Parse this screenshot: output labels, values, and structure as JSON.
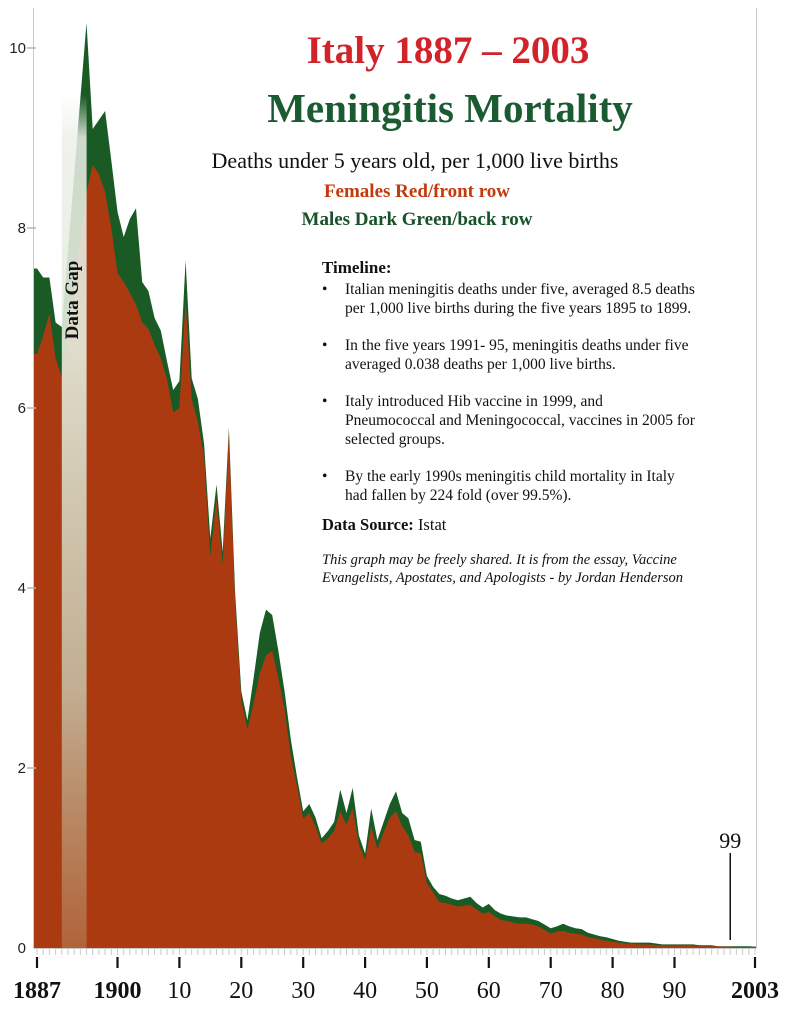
{
  "title": {
    "line1": "Italy 1887 – 2003",
    "line2": "Meningitis Mortality"
  },
  "subtitle": "Deaths under 5 years old, per 1,000 live births",
  "legend": {
    "females": "Females Red/front row",
    "males": "Males Dark Green/back row"
  },
  "timeline": {
    "heading": "Timeline:",
    "bullet_char": "•",
    "bullets": [
      "Italian meningitis deaths under five, averaged 8.5 deaths\nper 1,000 live births during the five years 1895 to 1899.",
      "In the five years 1991- 95, meningitis deaths under five\naveraged 0.038 deaths per 1,000 live births.",
      "Italy introduced Hib vaccine in 1999, and\nPneumococcal and Meningococcal, vaccines in 2005 for\nselected groups.",
      "By the early 1990s meningitis child mortality in Italy\nhad fallen by 224 fold (over 99.5%)."
    ]
  },
  "data_source": {
    "label": "Data Source:",
    "value": " Istat"
  },
  "footer": "This graph may be freely shared. It is from the essay, Vaccine\nEvangelists, Apostates, and Apologists - by Jordan Henderson",
  "annotations": {
    "gap_label": "Data Gap",
    "marker_label": "99",
    "marker_year": 1999
  },
  "colors": {
    "title_red": "#D2232A",
    "title_green": "#1B5B31",
    "females_label": "#C23A0E",
    "males_label": "#175229",
    "male_area": "#1A5B25",
    "female_area": "#AC3A10",
    "axis_light": "#C9C9C9",
    "tick_dark": "#111111",
    "y_dash": "#B5B5B5"
  },
  "chart_data": {
    "type": "area",
    "title": "Italy 1887 – 2003 Meningitis Mortality",
    "ylabel": "Deaths under 5 years old, per 1,000 live births",
    "x_start": 1887,
    "x_end": 2003,
    "ylim": [
      0,
      10.5
    ],
    "y_ticks": [
      0,
      2,
      4,
      6,
      8,
      10
    ],
    "x_tick_labels": [
      {
        "year": 1887,
        "label": "1887",
        "bold": true
      },
      {
        "year": 1900,
        "label": "1900",
        "bold": true
      },
      {
        "year": 1910,
        "label": "10",
        "bold": false
      },
      {
        "year": 1920,
        "label": "20",
        "bold": false
      },
      {
        "year": 1930,
        "label": "30",
        "bold": false
      },
      {
        "year": 1940,
        "label": "40",
        "bold": false
      },
      {
        "year": 1950,
        "label": "50",
        "bold": false
      },
      {
        "year": 1960,
        "label": "60",
        "bold": false
      },
      {
        "year": 1970,
        "label": "70",
        "bold": false
      },
      {
        "year": 1980,
        "label": "80",
        "bold": false
      },
      {
        "year": 1990,
        "label": "90",
        "bold": false
      },
      {
        "year": 2003,
        "label": "2003",
        "bold": true
      }
    ],
    "gap_band": {
      "from_year": 1891,
      "to_year": 1895,
      "stops": [
        [
          0,
          "#EDF1E9",
          0.0
        ],
        [
          0.05,
          "#EDF1E9",
          0.85
        ],
        [
          0.3,
          "#E3EADB",
          0.92
        ],
        [
          0.7,
          "#C9D4BC",
          0.75
        ],
        [
          1,
          "#BCC49E",
          0.3
        ]
      ]
    },
    "series": [
      {
        "name": "Males",
        "color": "#1A5B25",
        "values": [
          7.55,
          7.45,
          7.45,
          6.95,
          6.9,
          null,
          null,
          null,
          10.28,
          9.1,
          9.2,
          9.3,
          8.75,
          8.18,
          7.9,
          8.1,
          8.22,
          7.4,
          7.3,
          7.0,
          6.86,
          6.52,
          6.2,
          6.3,
          7.64,
          6.33,
          6.1,
          5.6,
          4.55,
          5.15,
          4.4,
          5.78,
          3.95,
          2.85,
          2.53,
          3.0,
          3.5,
          3.76,
          3.7,
          3.3,
          2.85,
          2.32,
          1.9,
          1.52,
          1.6,
          1.45,
          1.22,
          1.3,
          1.4,
          1.76,
          1.5,
          1.78,
          1.25,
          1.05,
          1.55,
          1.2,
          1.4,
          1.6,
          1.74,
          1.5,
          1.44,
          1.2,
          1.18,
          0.8,
          0.68,
          0.6,
          0.58,
          0.55,
          0.53,
          0.55,
          0.57,
          0.5,
          0.45,
          0.49,
          0.42,
          0.38,
          0.36,
          0.35,
          0.34,
          0.34,
          0.32,
          0.3,
          0.26,
          0.22,
          0.24,
          0.27,
          0.24,
          0.22,
          0.21,
          0.17,
          0.15,
          0.13,
          0.12,
          0.1,
          0.08,
          0.07,
          0.06,
          0.06,
          0.06,
          0.06,
          0.05,
          0.04,
          0.04,
          0.04,
          0.04,
          0.04,
          0.04,
          0.03,
          0.03,
          0.03,
          0.02,
          0.02,
          0.02,
          0.02,
          0.02,
          0.02,
          0.015
        ]
      },
      {
        "name": "Females",
        "color": "#AC3A10",
        "values": [
          6.6,
          6.8,
          7.05,
          6.55,
          6.35,
          null,
          null,
          null,
          8.4,
          8.7,
          8.6,
          8.4,
          8.0,
          7.5,
          7.4,
          7.28,
          7.15,
          6.95,
          6.88,
          6.7,
          6.55,
          6.32,
          5.95,
          6.0,
          7.19,
          6.1,
          5.85,
          5.45,
          4.35,
          5.0,
          4.25,
          5.72,
          3.85,
          2.75,
          2.43,
          2.72,
          3.05,
          3.25,
          3.3,
          3.0,
          2.65,
          2.13,
          1.8,
          1.44,
          1.5,
          1.35,
          1.16,
          1.22,
          1.3,
          1.52,
          1.37,
          1.55,
          1.15,
          0.98,
          1.35,
          1.1,
          1.28,
          1.45,
          1.52,
          1.35,
          1.25,
          1.07,
          1.05,
          0.72,
          0.62,
          0.51,
          0.5,
          0.48,
          0.46,
          0.47,
          0.48,
          0.43,
          0.38,
          0.4,
          0.35,
          0.31,
          0.3,
          0.28,
          0.27,
          0.27,
          0.26,
          0.24,
          0.2,
          0.16,
          0.18,
          0.19,
          0.17,
          0.16,
          0.15,
          0.12,
          0.11,
          0.09,
          0.08,
          0.07,
          0.06,
          0.05,
          0.05,
          0.04,
          0.04,
          0.04,
          0.03,
          0.03,
          0.03,
          0.03,
          0.03,
          0.03,
          0.03,
          0.02,
          0.02,
          0.02,
          0.02,
          0.015,
          0.015,
          0.01,
          0.01,
          0.01,
          0.01
        ]
      }
    ]
  }
}
